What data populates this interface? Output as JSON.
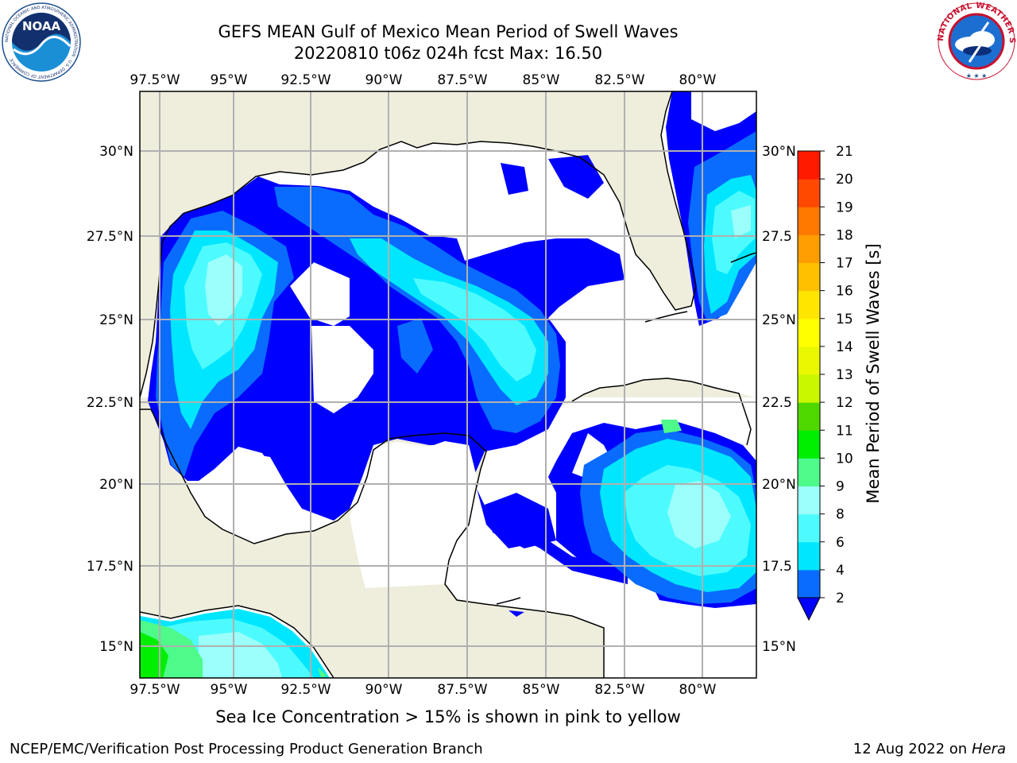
{
  "header": {
    "title_line1": "GEFS MEAN Gulf of Mexico Mean Period of Swell Waves",
    "title_line2": "20220810 t06z 024h fcst   Max: 16.50"
  },
  "logos": {
    "left": "NOAA",
    "left_ring_text": "NATIONAL OCEANIC AND ATMOSPHERIC ADMINISTRATION · U.S. DEPARTMENT OF COMMERCE",
    "right_ring_text": "NATIONAL WEATHER SERVICE"
  },
  "map": {
    "lon_labels": [
      "97.5°W",
      "95°W",
      "92.5°W",
      "90°W",
      "87.5°W",
      "85°W",
      "82.5°W",
      "80°W"
    ],
    "lat_labels_left": [
      "30°N",
      "27.5°N",
      "25°N",
      "22.5°N",
      "20°N",
      "17.5°N",
      "15°N"
    ],
    "lat_labels_right": [
      "30°N",
      "27.5",
      "25°N",
      "22.5",
      "20°N",
      "17.5",
      "15°N"
    ],
    "colors": {
      "land": "#efeedd",
      "ocean_blank": "#ffffff",
      "grid": "#b0b0b0",
      "coast": "#000000"
    }
  },
  "colorbar": {
    "label": "Mean Period of Swell Waves [s]",
    "ticks": [
      "2",
      "4",
      "6",
      "8",
      "9",
      "10",
      "11",
      "12",
      "13",
      "14",
      "15",
      "16",
      "17",
      "18",
      "19",
      "20",
      "21"
    ],
    "colors": [
      "#0a6cff",
      "#00e6ff",
      "#4dfbff",
      "#9bfffb",
      "#4dfa8a",
      "#00ee00",
      "#4fd700",
      "#c9f700",
      "#e9f700",
      "#ffff00",
      "#ffe600",
      "#ffc000",
      "#ff9e00",
      "#ff7800",
      "#ff4800",
      "#ff1a00"
    ],
    "extend_color": "#0000ff"
  },
  "footer": {
    "note": "Sea Ice Concentration > 15% is shown in pink to yellow",
    "left": "NCEP/EMC/Verification Post Processing Product Generation Branch",
    "right_date": "12 Aug 2022 on",
    "right_host": "Hera"
  }
}
